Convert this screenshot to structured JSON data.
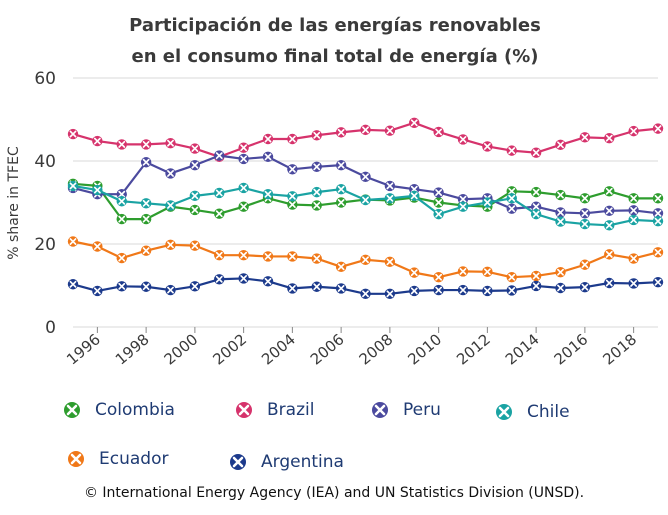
{
  "chart_data": {
    "type": "line",
    "title_line1": "Participación de las energías renovables",
    "title_line2": "en el consumo final total de energía (%)",
    "ylabel": "% share in TFEC",
    "xlabel": "",
    "ylim": [
      0,
      60
    ],
    "xlim": [
      1995,
      2019
    ],
    "y_ticks": [
      0,
      20,
      40,
      60
    ],
    "x_ticks": [
      "1996",
      "1998",
      "2000",
      "2002",
      "2004",
      "2006",
      "2008",
      "2010",
      "2012",
      "2014",
      "2016",
      "2018"
    ],
    "grid": true,
    "legend_position": "bottom",
    "x": [
      1995,
      1996,
      1997,
      1998,
      1999,
      2000,
      2001,
      2002,
      2003,
      2004,
      2005,
      2006,
      2007,
      2008,
      2009,
      2010,
      2011,
      2012,
      2013,
      2014,
      2015,
      2016,
      2017,
      2018,
      2019
    ],
    "series": [
      {
        "name": "Colombia",
        "color": "#2e9d2e",
        "values": [
          34.5,
          34.0,
          26.0,
          26.0,
          29.0,
          28.2,
          27.3,
          29.0,
          31.0,
          29.5,
          29.3,
          30.0,
          30.7,
          30.5,
          31.2,
          30.0,
          29.3,
          29.0,
          32.7,
          32.5,
          31.8,
          31.0,
          32.7,
          31.0,
          31.0
        ]
      },
      {
        "name": "Brazil",
        "color": "#d6336c",
        "values": [
          46.5,
          44.8,
          44.0,
          44.0,
          44.3,
          43.0,
          41.0,
          43.2,
          45.3,
          45.3,
          46.2,
          46.9,
          47.5,
          47.3,
          49.2,
          47.0,
          45.2,
          43.5,
          42.5,
          42.0,
          43.9,
          45.7,
          45.5,
          47.2,
          47.8
        ]
      },
      {
        "name": "Peru",
        "color": "#4b4a9e",
        "values": [
          33.5,
          32.0,
          32.0,
          39.7,
          37.0,
          39.0,
          41.3,
          40.5,
          41.0,
          38.0,
          38.6,
          39.0,
          36.2,
          34.0,
          33.2,
          32.4,
          30.8,
          31.0,
          28.5,
          29.0,
          27.6,
          27.4,
          28.0,
          28.1,
          27.4
        ]
      },
      {
        "name": "Chile",
        "color": "#1aa3a3",
        "values": [
          34.0,
          33.0,
          30.3,
          29.8,
          29.3,
          31.6,
          32.3,
          33.5,
          32.0,
          31.5,
          32.5,
          33.2,
          30.6,
          31.0,
          31.6,
          27.2,
          29.0,
          30.0,
          31.0,
          27.2,
          25.4,
          24.8,
          24.5,
          25.8,
          25.5
        ]
      },
      {
        "name": "Ecuador",
        "color": "#f07818",
        "values": [
          20.6,
          19.4,
          16.6,
          18.4,
          19.8,
          19.6,
          17.3,
          17.3,
          17.0,
          17.0,
          16.5,
          14.5,
          16.2,
          15.7,
          13.1,
          12.0,
          13.4,
          13.3,
          12.0,
          12.3,
          13.2,
          15.0,
          17.5,
          16.5,
          18.0
        ]
      },
      {
        "name": "Argentina",
        "color": "#1c3a8c",
        "values": [
          10.3,
          8.7,
          9.8,
          9.7,
          8.9,
          9.8,
          11.5,
          11.7,
          11.0,
          9.3,
          9.7,
          9.3,
          8.0,
          8.0,
          8.7,
          8.9,
          8.9,
          8.7,
          8.8,
          9.9,
          9.4,
          9.6,
          10.6,
          10.5,
          10.8
        ]
      }
    ]
  },
  "footer": "© International Energy Agency (IEA) and UN Statistics Division (UNSD)."
}
